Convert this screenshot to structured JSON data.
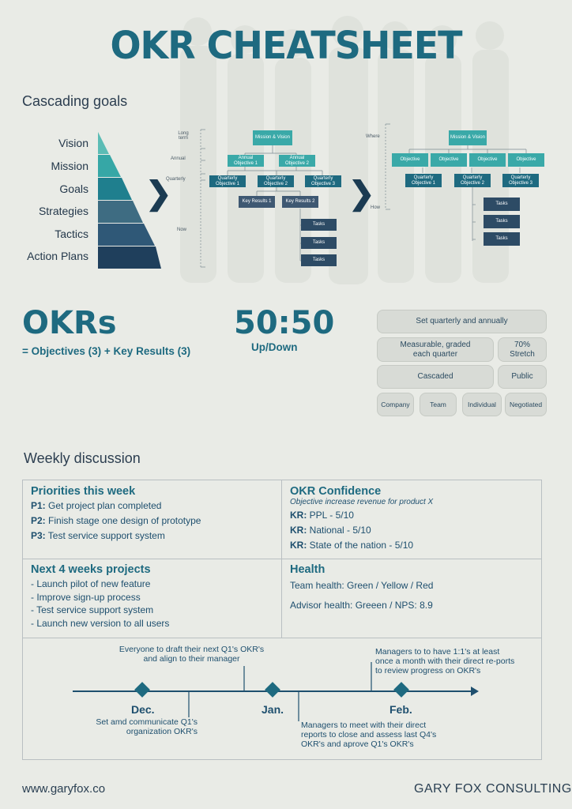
{
  "title": "OKR CHEATSHEET",
  "cascading": {
    "heading": "Cascading goals",
    "pyramid": [
      "Vision",
      "Mission",
      "Goals",
      "Strategies",
      "Tactics",
      "Action Plans"
    ],
    "left_axis": [
      "Long term",
      "Annual",
      "Quarterly",
      "Now"
    ],
    "left_tree": {
      "root": "Mission & Vision",
      "annual": [
        "Annual Objective 1",
        "Annual Objective 2"
      ],
      "quarterly": [
        "Quarterly Objective 1",
        "Quarterly Objective 2",
        "Quarterly Objective 3"
      ],
      "key_results": [
        "Key Results 1",
        "Key Results 2"
      ],
      "tasks": [
        "Tasks",
        "Tasks",
        "Tasks"
      ]
    },
    "right_axis": [
      "Where",
      "How"
    ],
    "right_tree": {
      "root": "Mission & Vision",
      "objectives": [
        "Objective",
        "Objective",
        "Objective",
        "Objective"
      ],
      "quarterly": [
        "Quarterly Objective 1",
        "Quarterly Objective 2",
        "Quarterly Objective 3"
      ],
      "tasks": [
        "Tasks",
        "Tasks",
        "Tasks"
      ]
    }
  },
  "okrs": {
    "big": "OKRs",
    "formula": "= Objectives (3) + Key Results (3)",
    "ratio": "50:50",
    "ratio_sub": "Up/Down"
  },
  "pills": {
    "set_quarterly": "Set quarterly and annually",
    "measurable": "Measurable, graded each quarter",
    "stretch": "70% Stretch",
    "cascaded": "Cascaded",
    "public": "Public",
    "company": "Company",
    "team": "Team",
    "individual": "Individual",
    "negotiated": "Negotiated"
  },
  "weekly": {
    "heading": "Weekly discussion",
    "priorities": {
      "title": "Priorities this week",
      "items": [
        {
          "tag": "P1:",
          "text": " Get project plan completed"
        },
        {
          "tag": "P2:",
          "text": " Finish stage one design of prototype"
        },
        {
          "tag": "P3:",
          "text": " Test service support system"
        }
      ]
    },
    "confidence": {
      "title": "OKR Confidence",
      "subtitle": "Objective increase revenue for product X",
      "items": [
        {
          "tag": "KR:",
          "text": " PPL - 5/10"
        },
        {
          "tag": "KR:",
          "text": " National - 5/10"
        },
        {
          "tag": "KR:",
          "text": " State of the nation - 5/10"
        }
      ]
    },
    "next4": {
      "title": "Next 4 weeks projects",
      "items": [
        "- Launch pilot of new feature",
        "- Improve sign-up process",
        "- Test service support system",
        "- Launch new version to all users"
      ]
    },
    "health": {
      "title": "Health",
      "team": "Team health: Green / Yellow / Red",
      "advisor": "Advisor health: Greeen / NPS: 8.9"
    }
  },
  "timeline": {
    "months": [
      "Dec.",
      "Jan.",
      "Feb."
    ],
    "note_top_left": "Everyone to draft their next Q1's OKR's and align to their manager",
    "note_top_right": "Managers to to have 1:1's at least once a month with their direct re-ports to review progress on OKR's",
    "note_bottom_left": "Set amd communicate Q1's organization OKR's",
    "note_bottom_right": "Managers to meet with their direct reports to close and assess last Q4's OKR's and aprove Q1's OKR's"
  },
  "footer": {
    "website": "www.garyfox.co",
    "brand": "GARY FOX CONSULTING"
  }
}
